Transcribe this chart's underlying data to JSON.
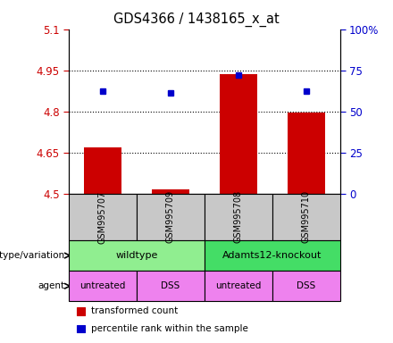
{
  "title": "GDS4366 / 1438165_x_at",
  "samples": [
    "GSM995707",
    "GSM995709",
    "GSM995708",
    "GSM995710"
  ],
  "red_values": [
    4.67,
    4.515,
    4.935,
    4.795
  ],
  "blue_values": [
    4.875,
    4.868,
    4.932,
    4.874
  ],
  "ylim_left": [
    4.5,
    5.1
  ],
  "ylim_right": [
    0,
    100
  ],
  "yticks_left": [
    4.5,
    4.65,
    4.8,
    4.95,
    5.1
  ],
  "yticks_right": [
    0,
    25,
    50,
    75,
    100
  ],
  "ytick_labels_left": [
    "4.5",
    "4.65",
    "4.8",
    "4.95",
    "5.1"
  ],
  "ytick_labels_right": [
    "0",
    "25",
    "50",
    "75",
    "100%"
  ],
  "hgrid_lines": [
    4.65,
    4.8,
    4.95
  ],
  "genotype_groups": [
    {
      "label": "wildtype",
      "cols": [
        0,
        1
      ],
      "color": "#90EE90"
    },
    {
      "label": "Adamts12-knockout",
      "cols": [
        2,
        3
      ],
      "color": "#44DD66"
    }
  ],
  "agent_labels": [
    "untreated",
    "DSS",
    "untreated",
    "DSS"
  ],
  "agent_color": "#EE82EE",
  "bar_color": "#CC0000",
  "dot_color": "#0000CC",
  "label_color_left": "#CC0000",
  "label_color_right": "#0000CC",
  "sample_box_color": "#C8C8C8",
  "legend_red": "transformed count",
  "legend_blue": "percentile rank within the sample",
  "genotype_label": "genotype/variation",
  "agent_label": "agent",
  "bar_width": 0.55
}
